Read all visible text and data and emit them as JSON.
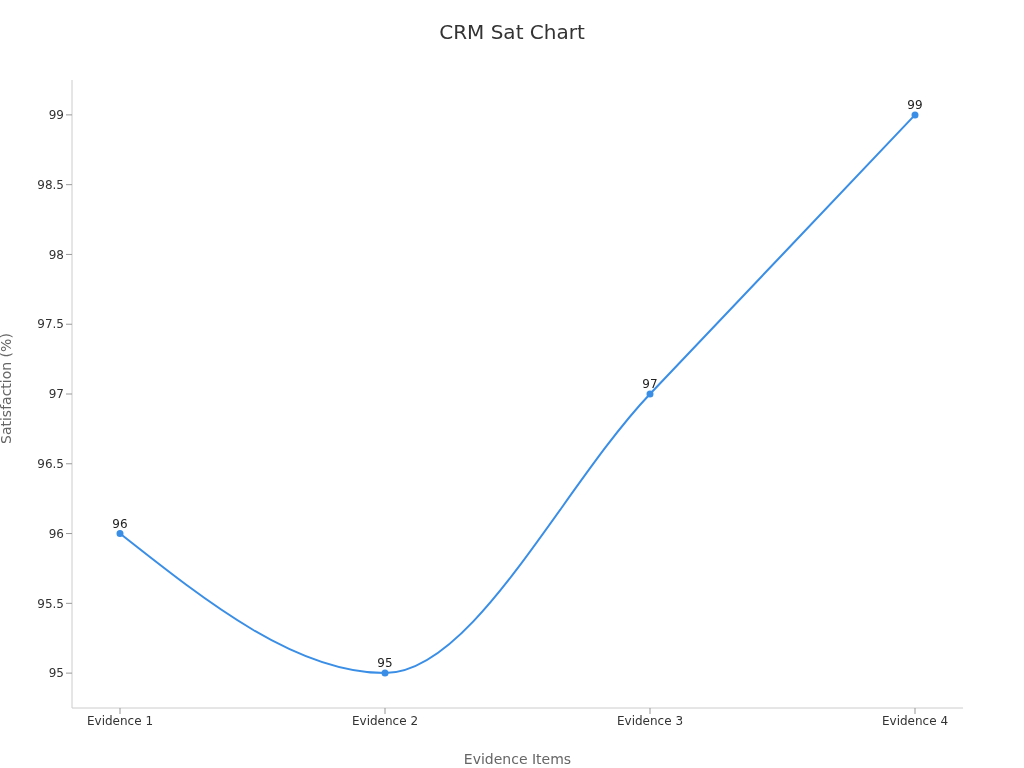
{
  "chart_data": {
    "type": "line",
    "title": "CRM Sat Chart",
    "xlabel": "Evidence Items",
    "ylabel": "Satisfaction (%)",
    "categories": [
      "Evidence 1",
      "Evidence 2",
      "Evidence 3",
      "Evidence 4"
    ],
    "series": [
      {
        "color": "#3a8ee6",
        "values": [
          96,
          95,
          97,
          99
        ]
      }
    ],
    "ylim": [
      94.75,
      99.25
    ],
    "yticks": [
      95,
      95.5,
      96,
      96.5,
      97,
      97.5,
      98,
      98.5,
      99
    ],
    "grid": false,
    "legend": false,
    "marker": "circle",
    "line_style": "solid",
    "data_labels": true
  }
}
